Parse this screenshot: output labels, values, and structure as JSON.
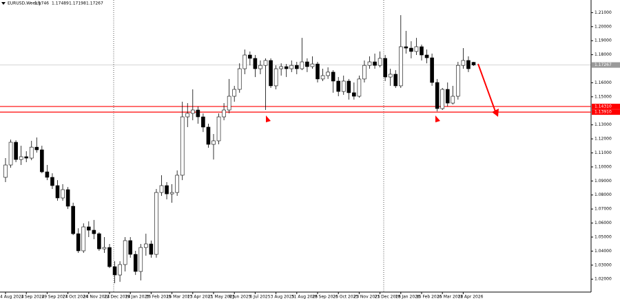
{
  "chart_data": {
    "type": "candlestick",
    "symbol": "EURUSD,Weekly",
    "categories": [
      "4 Aug 2024",
      null,
      null,
      null,
      "1 Sep 2024",
      null,
      null,
      null,
      "29 Sep 2024",
      null,
      null,
      null,
      "27 Oct 2024",
      null,
      null,
      null,
      "24 Nov 2024",
      null,
      null,
      null,
      "22 Dec 2024",
      null,
      null,
      null,
      "19 Jan 2025",
      null,
      null,
      null,
      "16 Feb 2025",
      null,
      null,
      null,
      "16 Mar 2025",
      null,
      null,
      null,
      "13 Apr 2025",
      null,
      null,
      null,
      "11 May 2025",
      null,
      null,
      null,
      "8 Jun 2025",
      null,
      null,
      null,
      "6 Jul 2025",
      null,
      null,
      null,
      "3 Aug 2025",
      null,
      null,
      null,
      "31 Aug 2025",
      null,
      null,
      null,
      "28 Sep 2025",
      null,
      null,
      null,
      "26 Oct 2025",
      null,
      null,
      null,
      "23 Nov 2025",
      null,
      null,
      null,
      "21 Dec 2025",
      null,
      null,
      null,
      "18 Jan 2026",
      null,
      null,
      null,
      "15 Feb 2026",
      null,
      null,
      null,
      "15 Mar 2026",
      null,
      null,
      null,
      "12 Apr 2026",
      null,
      null
    ],
    "open": [
      1.0926,
      1.1014,
      1.1176,
      1.1053,
      1.1073,
      1.1063,
      1.1141,
      1.1122,
      1.0965,
      1.0926,
      1.0867,
      1.0779,
      1.0838,
      1.072,
      1.0524,
      1.0402,
      1.0573,
      1.0549,
      1.0524,
      1.0416,
      1.0426,
      1.0289,
      1.023,
      1.0304,
      1.0475,
      1.0377,
      1.0255,
      1.0426,
      1.0451,
      1.0377,
      1.0818,
      1.0867,
      1.0808,
      1.0818,
      1.0941,
      1.1357,
      1.1382,
      1.1406,
      1.1357,
      1.1284,
      1.1161,
      1.1186,
      1.1357,
      1.1406,
      1.1504,
      1.1553,
      1.17,
      1.1798,
      1.1774,
      1.17,
      1.1724,
      1.1759,
      1.1578,
      1.17,
      1.1715,
      1.17,
      1.1724,
      1.17,
      1.1749,
      1.1715,
      1.1734,
      1.1627,
      1.1651,
      1.1676,
      1.1612,
      1.1538,
      1.1612,
      1.1529,
      1.1504,
      1.1627,
      1.1724,
      1.1749,
      1.1724,
      1.1774,
      1.1641,
      1.1661,
      1.1578,
      1.1857,
      1.1847,
      1.1823,
      1.1857,
      1.1798,
      1.1778,
      1.1602,
      1.1416,
      1.1553,
      1.1455,
      1.1504,
      1.1724,
      1.1759,
      1.1746
    ],
    "high": [
      1.1063,
      1.1195,
      1.119,
      1.1151,
      1.1112,
      1.1186,
      1.121,
      1.1151,
      1.1014,
      1.0955,
      1.0906,
      1.0877,
      1.0857,
      1.0745,
      1.0563,
      1.0598,
      1.0612,
      1.0622,
      1.0534,
      1.05,
      1.0451,
      1.0328,
      1.0328,
      1.05,
      1.05,
      1.0402,
      1.0451,
      1.0524,
      1.0475,
      1.0843,
      1.0941,
      1.0892,
      1.0877,
      1.0975,
      1.1465,
      1.1455,
      1.1553,
      1.1431,
      1.1382,
      1.1308,
      1.1235,
      1.1382,
      1.1455,
      1.1627,
      1.1578,
      1.1739,
      1.1837,
      1.1823,
      1.1798,
      1.1759,
      1.1774,
      1.1774,
      1.1724,
      1.1739,
      1.1734,
      1.1759,
      1.1749,
      1.192,
      1.1774,
      1.1788,
      1.1749,
      1.17,
      1.171,
      1.169,
      1.1641,
      1.1651,
      1.1627,
      1.1602,
      1.1651,
      1.1759,
      1.1788,
      1.1808,
      1.1823,
      1.1798,
      1.17,
      1.169,
      1.2082,
      1.197,
      1.1896,
      1.192,
      1.1872,
      1.1837,
      1.1808,
      1.1627,
      1.1563,
      1.1602,
      1.1578,
      1.1749,
      1.1847,
      1.1788,
      1.17489
    ],
    "low": [
      1.0892,
      1.0994,
      1.1034,
      1.1014,
      1.1034,
      1.1048,
      1.1102,
      1.0955,
      1.0906,
      1.0843,
      1.0759,
      1.0759,
      1.07,
      1.0514,
      1.0387,
      1.0387,
      1.05,
      1.0485,
      1.0402,
      1.0387,
      1.0279,
      1.0171,
      1.0181,
      1.0255,
      1.0353,
      1.023,
      1.0191,
      1.0367,
      1.0353,
      1.0353,
      1.0794,
      1.0769,
      1.0745,
      1.0794,
      1.0906,
      1.1284,
      1.1333,
      1.1308,
      1.1249,
      1.1137,
      1.1053,
      1.1161,
      1.1333,
      1.1382,
      1.1465,
      1.1529,
      1.1661,
      1.1724,
      1.1641,
      1.1661,
      1.1406,
      1.1563,
      1.1553,
      1.1651,
      1.1641,
      1.1676,
      1.1661,
      1.169,
      1.1676,
      1.17,
      1.1602,
      1.1612,
      1.1627,
      1.1529,
      1.1504,
      1.1514,
      1.148,
      1.148,
      1.1494,
      1.1602,
      1.17,
      1.17,
      1.171,
      1.1612,
      1.1578,
      1.1563,
      1.1563,
      1.1808,
      1.1774,
      1.1798,
      1.1759,
      1.1739,
      1.1578,
      1.1396,
      1.1406,
      1.1431,
      1.1445,
      1.148,
      1.17,
      1.1676,
      1.17198
    ],
    "close": [
      1.1014,
      1.1176,
      1.1053,
      1.1073,
      1.1063,
      1.1141,
      1.1122,
      1.0965,
      1.0926,
      1.0867,
      1.0779,
      1.0838,
      1.072,
      1.0524,
      1.0402,
      1.0573,
      1.0549,
      1.0524,
      1.0416,
      1.0426,
      1.0289,
      1.023,
      1.0304,
      1.0475,
      1.0377,
      1.0255,
      1.0426,
      1.0451,
      1.0377,
      1.0818,
      1.0867,
      1.0808,
      1.0818,
      1.0941,
      1.1357,
      1.1382,
      1.1406,
      1.1357,
      1.1284,
      1.1161,
      1.1186,
      1.1357,
      1.1406,
      1.1504,
      1.1553,
      1.17,
      1.1798,
      1.1774,
      1.17,
      1.1724,
      1.1759,
      1.1578,
      1.17,
      1.1715,
      1.17,
      1.1724,
      1.17,
      1.1749,
      1.1715,
      1.1734,
      1.1627,
      1.1651,
      1.1676,
      1.1612,
      1.1538,
      1.1612,
      1.1529,
      1.1504,
      1.1627,
      1.1724,
      1.1749,
      1.1724,
      1.1774,
      1.1641,
      1.1661,
      1.1578,
      1.1857,
      1.1847,
      1.1823,
      1.1857,
      1.1798,
      1.1778,
      1.1602,
      1.1416,
      1.1553,
      1.1455,
      1.1504,
      1.1724,
      1.1759,
      1.17,
      1.17267
    ],
    "ylim": [
      1.0108,
      1.219
    ],
    "yticks": [
      {
        "value": 1.02,
        "label": "1.02000"
      },
      {
        "value": 1.03,
        "label": "1.03000"
      },
      {
        "value": 1.04,
        "label": "1.04000"
      },
      {
        "value": 1.05,
        "label": "1.05000"
      },
      {
        "value": 1.06,
        "label": "1.06000"
      },
      {
        "value": 1.07,
        "label": "1.07000"
      },
      {
        "value": 1.08,
        "label": "1.08000"
      },
      {
        "value": 1.09,
        "label": "1.09000"
      },
      {
        "value": 1.1,
        "label": "1.10000"
      },
      {
        "value": 1.11,
        "label": "1.11000"
      },
      {
        "value": 1.12,
        "label": "1.12000"
      },
      {
        "value": 1.13,
        "label": "1.13000"
      },
      {
        "value": 1.15,
        "label": "1.15000"
      },
      {
        "value": 1.16,
        "label": "1.16000"
      },
      {
        "value": 1.18,
        "label": "1.18000"
      },
      {
        "value": 1.19,
        "label": "1.19000"
      },
      {
        "value": 1.2,
        "label": "1.20000"
      },
      {
        "value": 1.21,
        "label": "1.21000"
      }
    ],
    "levels": [
      {
        "value": 1.1431,
        "label": "1.14310"
      },
      {
        "value": 1.1391,
        "label": "1.13910"
      }
    ],
    "up_color": "#ffffff",
    "down_color": "#000000",
    "level_color": "#ff0000"
  }
}
